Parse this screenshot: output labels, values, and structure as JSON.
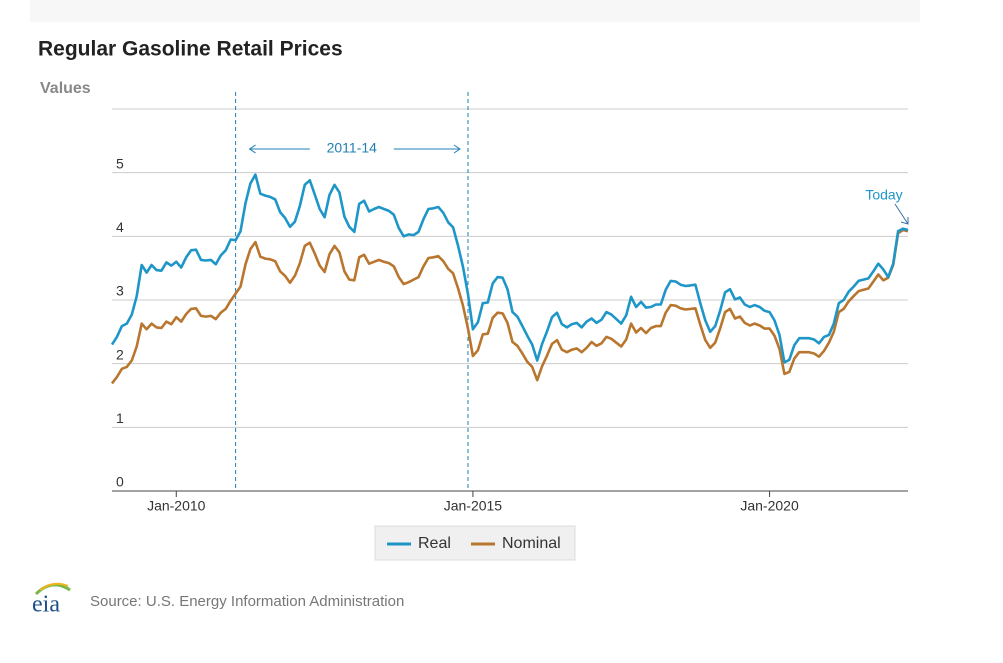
{
  "chart_data": {
    "type": "line",
    "title": "Regular Gasoline Retail Prices",
    "y_label": "Values",
    "source": "Source: U.S. Energy Information Administration",
    "logo": "eia",
    "x": [
      "2008-12",
      "2009-01",
      "2009-02",
      "2009-03",
      "2009-04",
      "2009-05",
      "2009-06",
      "2009-07",
      "2009-08",
      "2009-09",
      "2009-10",
      "2009-11",
      "2009-12",
      "2010-01",
      "2010-02",
      "2010-03",
      "2010-04",
      "2010-05",
      "2010-06",
      "2010-07",
      "2010-08",
      "2010-09",
      "2010-10",
      "2010-11",
      "2010-12",
      "2011-01",
      "2011-02",
      "2011-03",
      "2011-04",
      "2011-05",
      "2011-06",
      "2011-07",
      "2011-08",
      "2011-09",
      "2011-10",
      "2011-11",
      "2011-12",
      "2012-01",
      "2012-02",
      "2012-03",
      "2012-04",
      "2012-05",
      "2012-06",
      "2012-07",
      "2012-08",
      "2012-09",
      "2012-10",
      "2012-11",
      "2012-12",
      "2013-01",
      "2013-02",
      "2013-03",
      "2013-04",
      "2013-05",
      "2013-06",
      "2013-07",
      "2013-08",
      "2013-09",
      "2013-10",
      "2013-11",
      "2013-12",
      "2014-01",
      "2014-02",
      "2014-03",
      "2014-04",
      "2014-05",
      "2014-06",
      "2014-07",
      "2014-08",
      "2014-09",
      "2014-10",
      "2014-11",
      "2014-12",
      "2015-01",
      "2015-02",
      "2015-03",
      "2015-04",
      "2015-05",
      "2015-06",
      "2015-07",
      "2015-08",
      "2015-09",
      "2015-10",
      "2015-11",
      "2015-12",
      "2016-01",
      "2016-02",
      "2016-03",
      "2016-04",
      "2016-05",
      "2016-06",
      "2016-07",
      "2016-08",
      "2016-09",
      "2016-10",
      "2016-11",
      "2016-12",
      "2017-01",
      "2017-02",
      "2017-03",
      "2017-04",
      "2017-05",
      "2017-06",
      "2017-07",
      "2017-08",
      "2017-09",
      "2017-10",
      "2017-11",
      "2017-12",
      "2018-01",
      "2018-02",
      "2018-03",
      "2018-04",
      "2018-05",
      "2018-06",
      "2018-07",
      "2018-08",
      "2018-09",
      "2018-10",
      "2018-11",
      "2018-12",
      "2019-01",
      "2019-02",
      "2019-03",
      "2019-04",
      "2019-05",
      "2019-06",
      "2019-07",
      "2019-08",
      "2019-09",
      "2019-10",
      "2019-11",
      "2019-12",
      "2020-01",
      "2020-02",
      "2020-03",
      "2020-04",
      "2020-05",
      "2020-06",
      "2020-07",
      "2020-08",
      "2020-09",
      "2020-10",
      "2020-11",
      "2020-12",
      "2021-01",
      "2021-02",
      "2021-03",
      "2021-04",
      "2021-05",
      "2021-06",
      "2021-07",
      "2021-08",
      "2021-09",
      "2021-10",
      "2021-11",
      "2021-12",
      "2022-01",
      "2022-02",
      "2022-03",
      "2022-04",
      "2022-05"
    ],
    "series": [
      {
        "name": "Real",
        "color": "#1f96c8",
        "values": [
          2.3,
          2.42,
          2.59,
          2.63,
          2.77,
          3.06,
          3.55,
          3.43,
          3.55,
          3.47,
          3.46,
          3.59,
          3.54,
          3.6,
          3.51,
          3.67,
          3.78,
          3.79,
          3.63,
          3.62,
          3.63,
          3.56,
          3.7,
          3.78,
          3.95,
          3.94,
          4.08,
          4.52,
          4.83,
          4.97,
          4.67,
          4.64,
          4.62,
          4.58,
          4.38,
          4.29,
          4.15,
          4.23,
          4.48,
          4.81,
          4.88,
          4.66,
          4.43,
          4.3,
          4.65,
          4.81,
          4.69,
          4.31,
          4.15,
          4.07,
          4.51,
          4.56,
          4.39,
          4.43,
          4.46,
          4.43,
          4.4,
          4.34,
          4.13,
          4.0,
          4.03,
          4.02,
          4.07,
          4.27,
          4.43,
          4.44,
          4.46,
          4.37,
          4.22,
          4.14,
          3.85,
          3.52,
          3.09,
          2.54,
          2.65,
          2.95,
          2.96,
          3.26,
          3.36,
          3.35,
          3.17,
          2.81,
          2.74,
          2.59,
          2.44,
          2.3,
          2.05,
          2.31,
          2.51,
          2.73,
          2.8,
          2.62,
          2.57,
          2.62,
          2.64,
          2.57,
          2.66,
          2.71,
          2.64,
          2.69,
          2.81,
          2.77,
          2.7,
          2.63,
          2.76,
          3.05,
          2.89,
          2.97,
          2.88,
          2.89,
          2.93,
          2.93,
          3.16,
          3.3,
          3.29,
          3.24,
          3.22,
          3.23,
          3.24,
          2.95,
          2.68,
          2.5,
          2.59,
          2.83,
          3.12,
          3.17,
          3.01,
          3.04,
          2.93,
          2.89,
          2.92,
          2.89,
          2.83,
          2.81,
          2.68,
          2.45,
          2.02,
          2.06,
          2.29,
          2.4,
          2.4,
          2.4,
          2.38,
          2.32,
          2.42,
          2.45,
          2.63,
          2.95,
          3.0,
          3.13,
          3.21,
          3.3,
          3.32,
          3.34,
          3.45,
          3.57,
          3.48,
          3.36,
          3.57,
          4.08,
          4.12,
          4.1
        ]
      },
      {
        "name": "Nominal",
        "color": "#b8762e",
        "values": [
          1.69,
          1.79,
          1.92,
          1.95,
          2.05,
          2.27,
          2.63,
          2.54,
          2.63,
          2.57,
          2.56,
          2.66,
          2.62,
          2.73,
          2.66,
          2.78,
          2.86,
          2.87,
          2.75,
          2.74,
          2.75,
          2.7,
          2.8,
          2.86,
          2.99,
          3.1,
          3.21,
          3.56,
          3.8,
          3.91,
          3.68,
          3.65,
          3.64,
          3.61,
          3.45,
          3.38,
          3.27,
          3.38,
          3.58,
          3.85,
          3.9,
          3.73,
          3.54,
          3.44,
          3.72,
          3.85,
          3.75,
          3.45,
          3.32,
          3.31,
          3.67,
          3.71,
          3.57,
          3.6,
          3.63,
          3.6,
          3.58,
          3.53,
          3.36,
          3.25,
          3.28,
          3.32,
          3.36,
          3.53,
          3.66,
          3.67,
          3.69,
          3.61,
          3.49,
          3.42,
          3.18,
          2.91,
          2.55,
          2.12,
          2.21,
          2.46,
          2.47,
          2.72,
          2.8,
          2.79,
          2.64,
          2.34,
          2.28,
          2.16,
          2.03,
          1.95,
          1.74,
          1.96,
          2.13,
          2.31,
          2.37,
          2.22,
          2.18,
          2.22,
          2.24,
          2.18,
          2.25,
          2.34,
          2.28,
          2.32,
          2.42,
          2.39,
          2.33,
          2.27,
          2.38,
          2.63,
          2.49,
          2.56,
          2.48,
          2.56,
          2.59,
          2.59,
          2.8,
          2.92,
          2.91,
          2.87,
          2.85,
          2.86,
          2.87,
          2.61,
          2.37,
          2.25,
          2.33,
          2.55,
          2.81,
          2.86,
          2.71,
          2.74,
          2.64,
          2.6,
          2.63,
          2.6,
          2.55,
          2.55,
          2.44,
          2.23,
          1.84,
          1.87,
          2.08,
          2.18,
          2.18,
          2.18,
          2.16,
          2.11,
          2.2,
          2.33,
          2.5,
          2.81,
          2.86,
          2.98,
          3.06,
          3.14,
          3.16,
          3.18,
          3.29,
          3.4,
          3.31,
          3.35,
          3.55,
          4.05,
          4.1,
          4.08
        ]
      }
    ],
    "xlim": [
      "2008-12",
      "2022-05"
    ],
    "xticks": [
      {
        "value": "2010-01",
        "label": "Jan-2010"
      },
      {
        "value": "2015-01",
        "label": "Jan-2015"
      },
      {
        "value": "2020-01",
        "label": "Jan-2020"
      }
    ],
    "ylim": [
      0,
      6
    ],
    "yticks": [
      0,
      1,
      2,
      3,
      4,
      5
    ],
    "grid": true,
    "legend": "bottom",
    "annotations": [
      {
        "text": "2011-14",
        "span": [
          "2011-01",
          "2014-12"
        ]
      },
      {
        "text": "Today",
        "at": "2022-05"
      }
    ]
  }
}
